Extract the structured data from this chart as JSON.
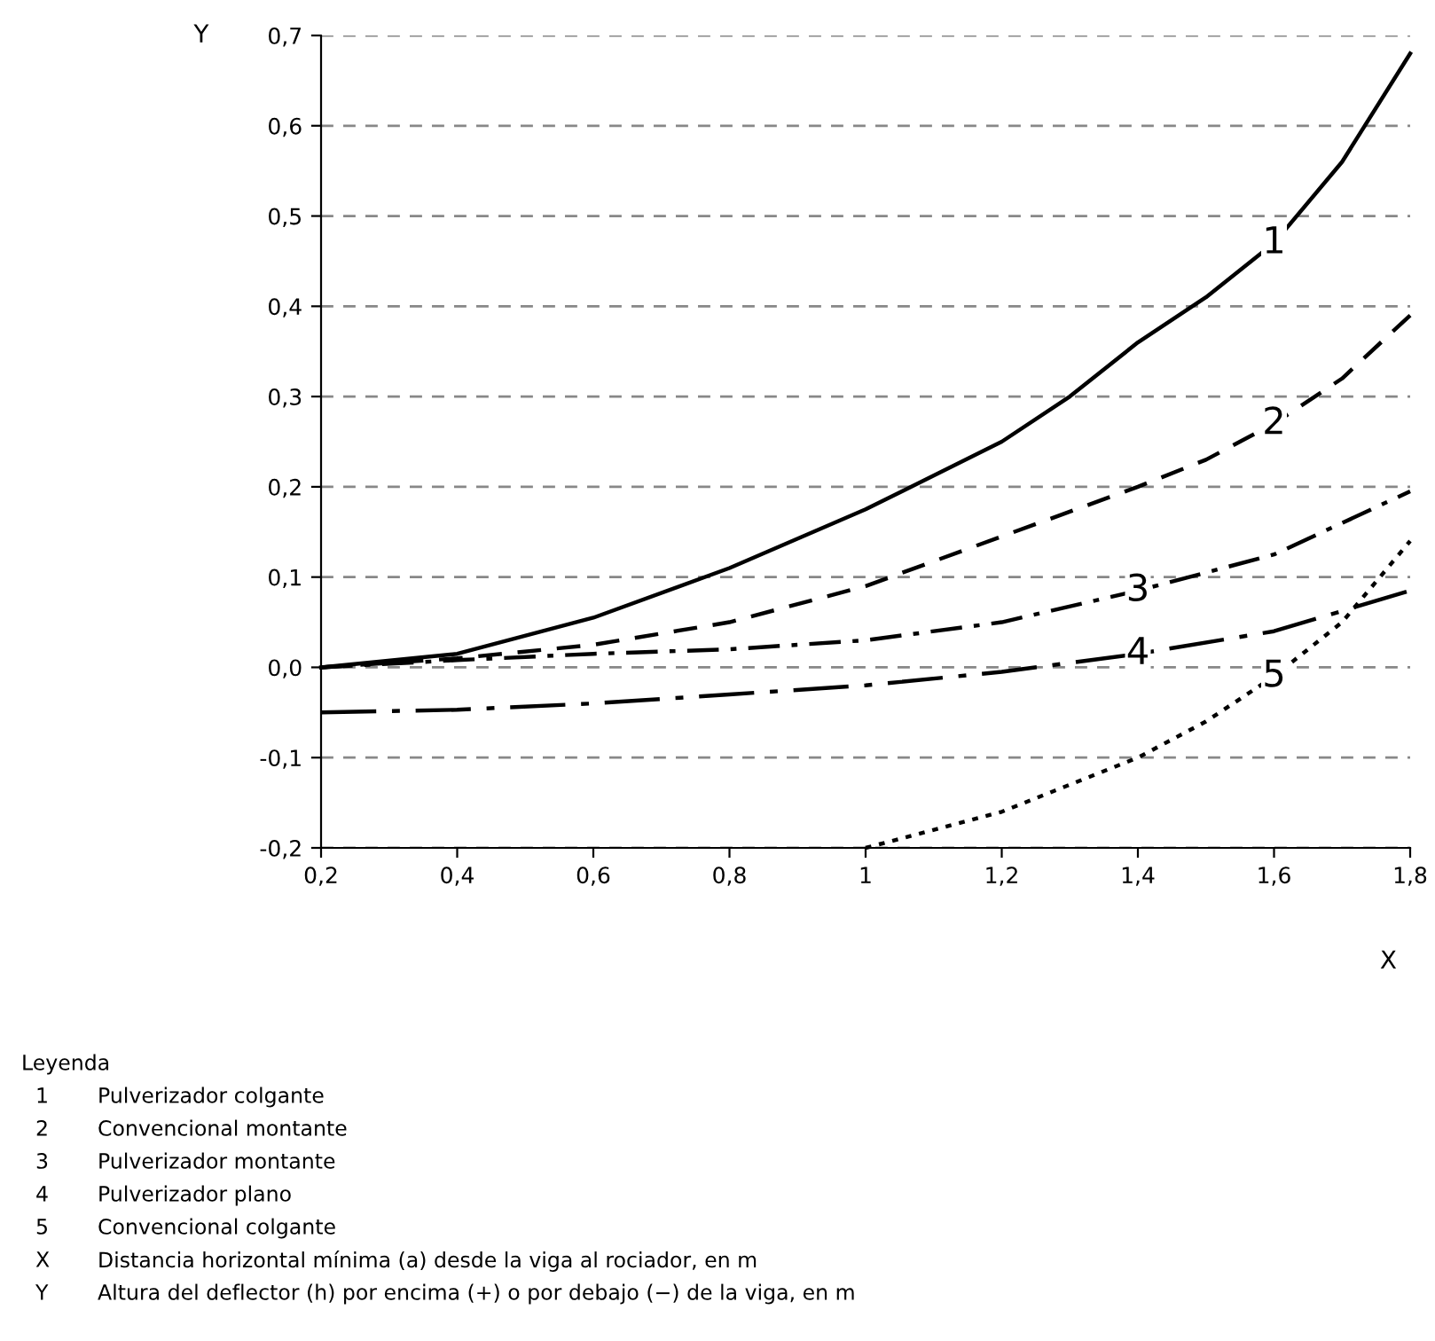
{
  "chart_data": {
    "type": "line",
    "xlabel": "X",
    "ylabel": "Y",
    "xlim": [
      0.2,
      1.8
    ],
    "ylim": [
      -0.2,
      0.7
    ],
    "xticks": [
      {
        "value": 0.2,
        "label": "0,2"
      },
      {
        "value": 0.4,
        "label": "0,4"
      },
      {
        "value": 0.6,
        "label": "0,6"
      },
      {
        "value": 0.8,
        "label": "0,8"
      },
      1,
      {
        "value": 1.2,
        "label": "1,2"
      },
      {
        "value": 1.4,
        "label": "1,4"
      },
      {
        "value": 1.6,
        "label": "1,6"
      },
      {
        "value": 1.8,
        "label": "1,8"
      }
    ],
    "yticks": [
      {
        "value": -0.2,
        "label": "-0,2"
      },
      {
        "value": -0.1,
        "label": "-0,1"
      },
      {
        "value": 0,
        "label": "0,0"
      },
      {
        "value": 0.1,
        "label": "0,1"
      },
      {
        "value": 0.2,
        "label": "0,2"
      },
      {
        "value": 0.3,
        "label": "0,3"
      },
      {
        "value": 0.4,
        "label": "0,4"
      },
      {
        "value": 0.5,
        "label": "0,5"
      },
      {
        "value": 0.6,
        "label": "0,6"
      },
      {
        "value": 0.7,
        "label": "0,7"
      }
    ],
    "grid": "y",
    "legend": false,
    "marker": "none",
    "series": [
      {
        "name": "1",
        "color": "#000000",
        "line_style": "solid",
        "x": [
          0.2,
          0.4,
          0.6,
          0.8,
          1.0,
          1.2,
          1.3,
          1.4,
          1.5,
          1.6,
          1.7,
          1.8
        ],
        "values": [
          0.0,
          0.015,
          0.055,
          0.11,
          0.175,
          0.25,
          0.3,
          0.36,
          0.41,
          0.47,
          0.56,
          0.68
        ]
      },
      {
        "name": "2",
        "color": "#000000",
        "line_style": "dashed",
        "x": [
          0.2,
          0.4,
          0.6,
          0.8,
          1.0,
          1.2,
          1.4,
          1.5,
          1.6,
          1.7,
          1.8
        ],
        "values": [
          0.0,
          0.01,
          0.025,
          0.05,
          0.09,
          0.145,
          0.2,
          0.23,
          0.27,
          0.32,
          0.39
        ]
      },
      {
        "name": "3",
        "color": "#000000",
        "line_style": "dashdot",
        "x": [
          0.2,
          0.4,
          0.6,
          0.8,
          1.0,
          1.2,
          1.4,
          1.6,
          1.8
        ],
        "values": [
          0.0,
          0.008,
          0.015,
          0.02,
          0.03,
          0.05,
          0.085,
          0.125,
          0.195
        ]
      },
      {
        "name": "4",
        "color": "#000000",
        "line_style": "longdashdot",
        "x": [
          0.2,
          0.4,
          0.6,
          0.8,
          1.0,
          1.2,
          1.4,
          1.6,
          1.8
        ],
        "values": [
          -0.05,
          -0.047,
          -0.04,
          -0.03,
          -0.02,
          -0.005,
          0.015,
          0.04,
          0.085
        ]
      },
      {
        "name": "5",
        "color": "#000000",
        "line_style": "dotted",
        "x": [
          1.0,
          1.2,
          1.4,
          1.5,
          1.6,
          1.7,
          1.8
        ],
        "values": [
          -0.2,
          -0.16,
          -0.1,
          -0.06,
          -0.01,
          0.05,
          0.14
        ]
      }
    ],
    "annotations": [
      "Leyenda",
      "1 Pulverizador colgante",
      "2 Convencional montante",
      "3 Pulverizador montante",
      "4 Pulverizador plano",
      "5 Convencional colgante",
      "X Distancia horizontal mínima (a) desde la viga al rociador, en m",
      "Y Altura del deflector (h) por encima (+) o por debajo (−) de la viga, en m"
    ]
  }
}
